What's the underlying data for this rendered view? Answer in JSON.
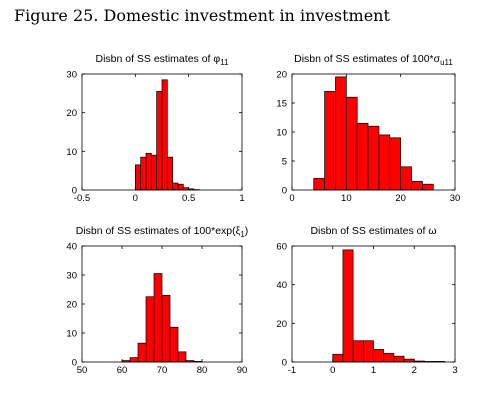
{
  "figure_title": "Figure 25. Domestic investment in investment",
  "chart_data": [
    {
      "type": "bar",
      "title": "Disbn of SS estimates of φ",
      "title_sub": "11",
      "title_sup": "",
      "title_close": "",
      "xlim": [
        -0.5,
        1
      ],
      "ylim": [
        0,
        30
      ],
      "xticks": [
        -0.5,
        0,
        0.5,
        1
      ],
      "xtick_labels": [
        "-0.5",
        "0",
        "0.5",
        "1"
      ],
      "yticks": [
        0,
        10,
        20,
        30
      ],
      "ytick_labels": [
        "0",
        "10",
        "20",
        "30"
      ],
      "bin_width": 0.05,
      "bin_starts": [
        0,
        0.05,
        0.1,
        0.15,
        0.2,
        0.25,
        0.3,
        0.35,
        0.4,
        0.45,
        0.5,
        0.55
      ],
      "values": [
        6.5,
        8.5,
        9.5,
        9,
        25.5,
        28.5,
        8.5,
        1.8,
        1.5,
        0.6,
        0.3,
        0.1
      ],
      "bar_color": "#ff0000"
    },
    {
      "type": "bar",
      "title": "Disbn of SS estimates of 100*σ",
      "title_sub": "u11",
      "title_sup": "",
      "title_close": "",
      "xlim": [
        0,
        30
      ],
      "ylim": [
        0,
        20
      ],
      "xticks": [
        0,
        10,
        20,
        30
      ],
      "xtick_labels": [
        "0",
        "10",
        "20",
        "30"
      ],
      "yticks": [
        0,
        5,
        10,
        15,
        20
      ],
      "ytick_labels": [
        "0",
        "5",
        "10",
        "15",
        "20"
      ],
      "bin_width": 2,
      "bin_starts": [
        4,
        6,
        8,
        10,
        12,
        14,
        16,
        18,
        20,
        22,
        24
      ],
      "values": [
        2,
        17,
        19.5,
        16,
        11.5,
        11,
        9.5,
        9,
        4,
        1.5,
        1
      ],
      "bar_color": "#ff0000"
    },
    {
      "type": "bar",
      "title": "Disbn of SS estimates of 100*exp(ξ",
      "title_sub": "1",
      "title_sup": "",
      "title_close": ")",
      "xlim": [
        50,
        90
      ],
      "ylim": [
        0,
        40
      ],
      "xticks": [
        50,
        60,
        70,
        80,
        90
      ],
      "xtick_labels": [
        "50",
        "60",
        "70",
        "80",
        "90"
      ],
      "yticks": [
        0,
        10,
        20,
        30,
        40
      ],
      "ytick_labels": [
        "0",
        "10",
        "20",
        "30",
        "40"
      ],
      "bin_width": 2,
      "bin_starts": [
        60,
        62,
        64,
        66,
        68,
        70,
        72,
        74,
        76,
        78
      ],
      "values": [
        0.5,
        1.5,
        6.5,
        22.5,
        30.5,
        23,
        12,
        3.5,
        0.5,
        0.2
      ],
      "bar_color": "#ff0000"
    },
    {
      "type": "bar",
      "title": "Disbn of SS estimates of ω",
      "title_sub": "",
      "title_sup": "",
      "title_close": "",
      "xlim": [
        -1,
        3
      ],
      "ylim": [
        0,
        60
      ],
      "xticks": [
        -1,
        0,
        1,
        2,
        3
      ],
      "xtick_labels": [
        "-1",
        "0",
        "1",
        "2",
        "3"
      ],
      "yticks": [
        0,
        20,
        40,
        60
      ],
      "ytick_labels": [
        "0",
        "20",
        "40",
        "60"
      ],
      "bin_width": 0.25,
      "bin_starts": [
        0,
        0.25,
        0.5,
        0.75,
        1,
        1.25,
        1.5,
        1.75,
        2,
        2.25,
        2.5
      ],
      "values": [
        4,
        58,
        11,
        11,
        6.5,
        4.5,
        3,
        1.5,
        0.5,
        0.3,
        0.3
      ],
      "bar_color": "#ff0000"
    }
  ]
}
